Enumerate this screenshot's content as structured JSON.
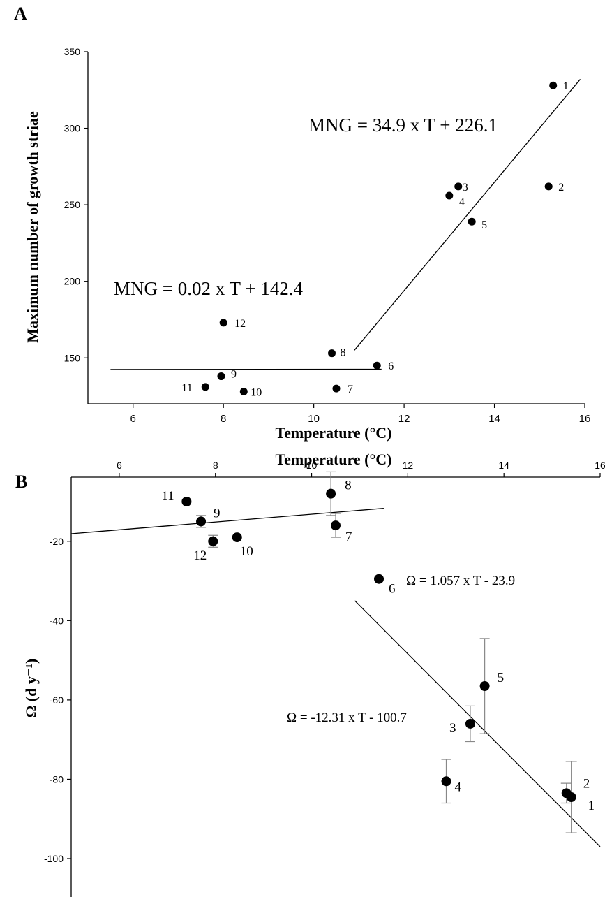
{
  "chart_data": [
    {
      "panel": "A",
      "type": "scatter",
      "xlabel": "Temperature (°C)",
      "ylabel": "Maximum number of growth striae",
      "xlim": [
        5,
        16
      ],
      "ylim": [
        120,
        350
      ],
      "xticks": [
        6,
        8,
        10,
        12,
        14,
        16
      ],
      "yticks": [
        150,
        200,
        250,
        300,
        350
      ],
      "grid": false,
      "points": [
        {
          "label": "1",
          "x": 15.3,
          "y": 328
        },
        {
          "label": "2",
          "x": 15.2,
          "y": 262
        },
        {
          "label": "3",
          "x": 13.2,
          "y": 262
        },
        {
          "label": "4",
          "x": 13.0,
          "y": 256
        },
        {
          "label": "5",
          "x": 13.5,
          "y": 239
        },
        {
          "label": "6",
          "x": 11.4,
          "y": 145
        },
        {
          "label": "7",
          "x": 10.5,
          "y": 130
        },
        {
          "label": "8",
          "x": 10.4,
          "y": 153
        },
        {
          "label": "9",
          "x": 7.95,
          "y": 138
        },
        {
          "label": "10",
          "x": 8.45,
          "y": 128
        },
        {
          "label": "11",
          "x": 7.6,
          "y": 131
        },
        {
          "label": "12",
          "x": 8.0,
          "y": 173
        }
      ],
      "fits": [
        {
          "equation": "MNG = 34.9 x T + 226.1",
          "x": [
            10.9,
            15.9
          ],
          "y": [
            155,
            332
          ]
        },
        {
          "equation": "MNG = 0.02 x T + 142.4",
          "x": [
            5.5,
            11.5
          ],
          "y": [
            142.4,
            142.6
          ]
        }
      ]
    },
    {
      "panel": "B",
      "type": "scatter",
      "xlabel": "Temperature (°C)",
      "ylabel": "Ω (d y⁻¹)",
      "xlim": [
        5,
        16
      ],
      "ylim": [
        -110,
        0
      ],
      "xticks": [
        6,
        8,
        10,
        12,
        14,
        16
      ],
      "yticks": [
        -20,
        -40,
        -60,
        -80,
        -100
      ],
      "grid": false,
      "points": [
        {
          "label": "1",
          "x": 15.4,
          "y": -84.5,
          "err": 0
        },
        {
          "label": "2",
          "x": 15.3,
          "y": -83.5,
          "err": 0
        },
        {
          "label": "3",
          "x": 13.3,
          "y": -66,
          "err": 4.5
        },
        {
          "label": "4",
          "x": 12.8,
          "y": -80.5,
          "err": 5.5
        },
        {
          "label": "5",
          "x": 13.6,
          "y": -56.5,
          "err": 12
        },
        {
          "label": "6",
          "x": 11.4,
          "y": -29.5,
          "err": 0
        },
        {
          "label": "7",
          "x": 10.5,
          "y": -16,
          "err": 3
        },
        {
          "label": "8",
          "x": 10.4,
          "y": -8,
          "err": 5.5
        },
        {
          "label": "9",
          "x": 7.7,
          "y": -15,
          "err": 1.5
        },
        {
          "label": "10",
          "x": 8.45,
          "y": -19,
          "err": 0
        },
        {
          "label": "11",
          "x": 7.4,
          "y": -10,
          "err": 0
        },
        {
          "label": "12",
          "x": 7.95,
          "y": -20,
          "err": 1.5
        }
      ],
      "bar_errors": [
        {
          "x": 15.4,
          "low": -93.5,
          "high": -75.5
        },
        {
          "x": 15.3,
          "low": -86,
          "high": -81
        }
      ],
      "fits": [
        {
          "equation": "Ω = 1.057 x T - 23.9",
          "x": [
            5.0,
            11.5
          ],
          "y": [
            -18.1,
            -11.7
          ]
        },
        {
          "equation": "Ω = -12.31 x T - 100.7",
          "x": [
            10.9,
            16.0
          ],
          "y": [
            -35,
            -97
          ]
        }
      ]
    }
  ]
}
